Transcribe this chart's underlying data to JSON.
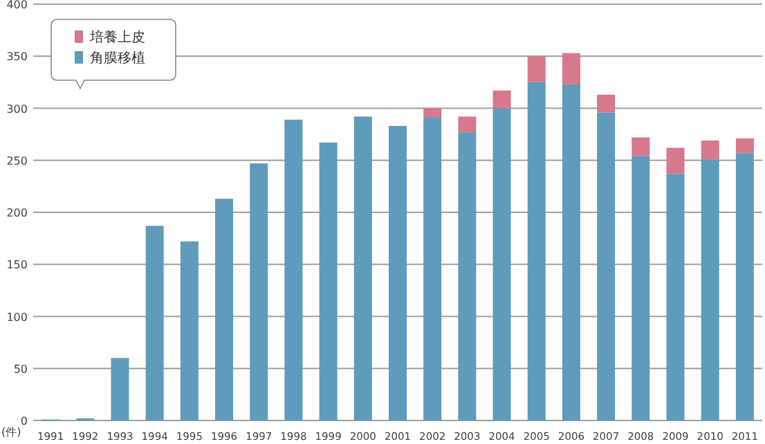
{
  "chart_data": {
    "type": "bar",
    "stacked": true,
    "ylabel": "(件)",
    "categories": [
      "1991",
      "1992",
      "1993",
      "1994",
      "1995",
      "1996",
      "1997",
      "1998",
      "1999",
      "2000",
      "2001",
      "2002",
      "2003",
      "2004",
      "2005",
      "2006",
      "2007",
      "2008",
      "2009",
      "2010",
      "2011"
    ],
    "series": [
      {
        "name": "角膜移植",
        "color": "#5f9bba",
        "values": [
          1,
          2,
          60,
          187,
          172,
          213,
          247,
          289,
          267,
          292,
          283,
          291,
          277,
          300,
          325,
          323,
          296,
          254,
          237,
          251,
          257
        ]
      },
      {
        "name": "培養上皮",
        "color": "#d7788c",
        "values": [
          null,
          null,
          null,
          null,
          null,
          null,
          null,
          null,
          null,
          null,
          null,
          9,
          15,
          17,
          25,
          30,
          17,
          18,
          25,
          18,
          14
        ]
      }
    ],
    "ylim": [
      0,
      400
    ],
    "yticks": [
      0,
      50,
      100,
      150,
      200,
      250,
      300,
      350,
      400
    ],
    "grid": "y",
    "legend": "top left"
  }
}
